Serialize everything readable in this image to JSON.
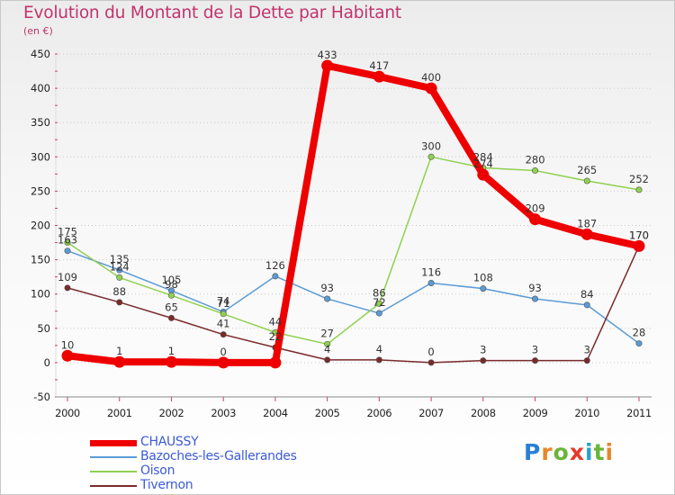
{
  "header": {
    "title": "Evolution du Montant de la Dette par Habitant",
    "unit": "(en €)"
  },
  "brand": {
    "letters": [
      "P",
      "r",
      "o",
      "x",
      "i",
      "t",
      "i"
    ],
    "colors": [
      "#2a7fd4",
      "#e8862a",
      "#6bb43a",
      "#e53a2a",
      "#2a9fd4",
      "#6bb43a",
      "#e8862a"
    ]
  },
  "chart_data": {
    "type": "line",
    "title": "Evolution du Montant de la Dette par Habitant",
    "subtitle": "(en €)",
    "xlabel": "",
    "ylabel": "",
    "x": [
      "2000",
      "2001",
      "2002",
      "2003",
      "2004",
      "2005",
      "2006",
      "2007",
      "2008",
      "2009",
      "2010",
      "2011"
    ],
    "ylim": [
      -50,
      450
    ],
    "yticks": [
      "-50",
      "0",
      "50",
      "100",
      "150",
      "200",
      "250",
      "300",
      "350",
      "400",
      "450"
    ],
    "grid": "horizontal dotted",
    "legend_position": "bottom-left",
    "series": [
      {
        "name": "CHAUSSY",
        "color": "#ee0000",
        "emphasis": "thick",
        "values": [
          10,
          1,
          1,
          0,
          0,
          433,
          417,
          400,
          274,
          209,
          187,
          170
        ],
        "labels": [
          "10",
          "1",
          "1",
          "0",
          "",
          "433",
          "417",
          "400",
          "274",
          "209",
          "187",
          "170"
        ]
      },
      {
        "name": "Bazoches-les-Gallerandes",
        "color": "#5b9bd5",
        "values": [
          163,
          135,
          105,
          74,
          126,
          93,
          72,
          116,
          108,
          93,
          84,
          28
        ],
        "labels": [
          "163",
          "135",
          "105",
          "74",
          "126",
          "93",
          "72",
          "116",
          "108",
          "93",
          "84",
          "28"
        ]
      },
      {
        "name": "Oison",
        "color": "#8fd14f",
        "values": [
          175,
          124,
          98,
          71,
          44,
          27,
          86,
          300,
          284,
          280,
          265,
          252
        ],
        "labels": [
          "175",
          "124",
          "98",
          "71",
          "44",
          "27",
          "86",
          "300",
          "284",
          "280",
          "265",
          "252"
        ]
      },
      {
        "name": "Tivernon",
        "color": "#7a2a2a",
        "values": [
          109,
          88,
          65,
          41,
          22,
          4,
          4,
          0,
          3,
          3,
          3,
          170
        ],
        "labels": [
          "109",
          "88",
          "65",
          "41",
          "22",
          "4",
          "4",
          "0",
          "3",
          "3",
          "3",
          "170"
        ]
      }
    ]
  }
}
